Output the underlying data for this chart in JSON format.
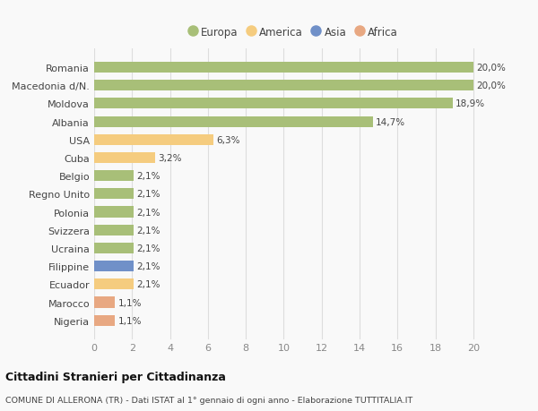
{
  "categories": [
    "Nigeria",
    "Marocco",
    "Ecuador",
    "Filippine",
    "Ucraina",
    "Svizzera",
    "Polonia",
    "Regno Unito",
    "Belgio",
    "Cuba",
    "USA",
    "Albania",
    "Moldova",
    "Macedonia d/N.",
    "Romania"
  ],
  "values": [
    1.1,
    1.1,
    2.1,
    2.1,
    2.1,
    2.1,
    2.1,
    2.1,
    2.1,
    3.2,
    6.3,
    14.7,
    18.9,
    20.0,
    20.0
  ],
  "bar_colors": [
    "#e8a882",
    "#e8a882",
    "#f5cc7f",
    "#7090c8",
    "#a8bf78",
    "#a8bf78",
    "#a8bf78",
    "#a8bf78",
    "#a8bf78",
    "#f5cc7f",
    "#f5cc7f",
    "#a8bf78",
    "#a8bf78",
    "#a8bf78",
    "#a8bf78"
  ],
  "labels": [
    "1,1%",
    "1,1%",
    "2,1%",
    "2,1%",
    "2,1%",
    "2,1%",
    "2,1%",
    "2,1%",
    "2,1%",
    "3,2%",
    "6,3%",
    "14,7%",
    "18,9%",
    "20,0%",
    "20,0%"
  ],
  "legend": {
    "Europa": "#a8bf78",
    "America": "#f5cc7f",
    "Asia": "#7090c8",
    "Africa": "#e8a882"
  },
  "xlim": [
    0,
    21
  ],
  "xticks": [
    0,
    2,
    4,
    6,
    8,
    10,
    12,
    14,
    16,
    18,
    20
  ],
  "title": "Cittadini Stranieri per Cittadinanza",
  "subtitle": "COMUNE DI ALLERONA (TR) - Dati ISTAT al 1° gennaio di ogni anno - Elaborazione TUTTITALIA.IT",
  "background_color": "#f9f9f9",
  "grid_color": "#dddddd",
  "bar_height": 0.6
}
